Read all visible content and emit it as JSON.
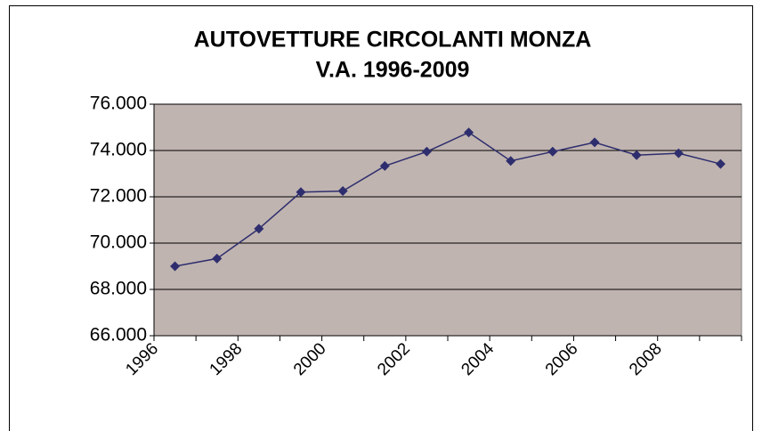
{
  "chart_data": {
    "type": "line",
    "title": "AUTOVETTURE CIRCOLANTI MONZA",
    "subtitle": "V.A. 1996-2009",
    "categories": [
      "1996",
      null,
      "1998",
      null,
      "2000",
      null,
      "2002",
      null,
      "2004",
      null,
      "2006",
      null,
      "2008",
      null
    ],
    "series": [
      {
        "name": null,
        "color": "#2e2e6e",
        "values": [
          69000,
          69330,
          70620,
          72200,
          72250,
          73330,
          73950,
          74780,
          73550,
          73950,
          74350,
          73800,
          73880,
          73420
        ]
      }
    ],
    "ylim": [
      66000,
      76000
    ],
    "yticks": [
      {
        "value": 66000,
        "label": "66.000"
      },
      {
        "value": 68000,
        "label": "68.000"
      },
      {
        "value": 70000,
        "label": "70.000"
      },
      {
        "value": 72000,
        "label": "72.000"
      },
      {
        "value": 74000,
        "label": "74.000"
      },
      {
        "value": 76000,
        "label": "76.000"
      }
    ],
    "grid": true,
    "plot_background": "#c0b4b0"
  }
}
